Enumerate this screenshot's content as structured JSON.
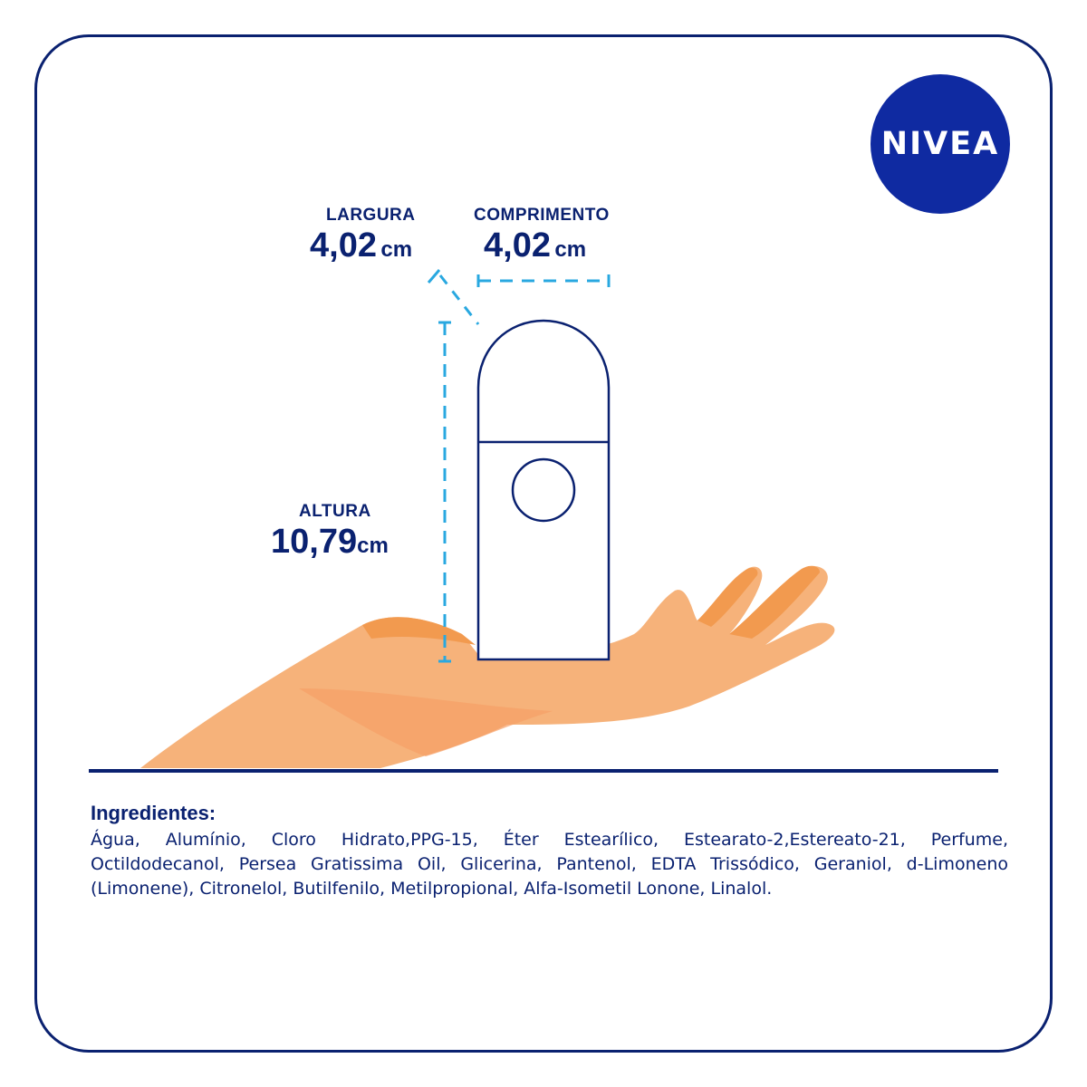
{
  "brand": {
    "name": "NIVEA",
    "color": "#0f2aa1",
    "icon": "nivea-logo-icon"
  },
  "dimensions": {
    "largura": {
      "label": "LARGURA",
      "value": "4,02",
      "unit": "cm"
    },
    "comprimento": {
      "label": "COMPRIMENTO",
      "value": "4,02",
      "unit": "cm"
    },
    "altura": {
      "label": "ALTURA",
      "value": "10,79",
      "unit": "cm"
    }
  },
  "illustration": {
    "product_icon": "roll-on-deodorant-icon",
    "hand_icon": "open-hand-icon",
    "measure_color": "#29a8e0",
    "skin_color": "#f6b27a"
  },
  "ingredients": {
    "title": "Ingredientes:",
    "text": "Água, Alumínio, Cloro Hidrato,PPG-15, Éter Estearílico, Estearato-2,Estereato-21, Perfume, Octildodecanol, Persea Gratissima Oil, Glicerina, Pantenol, EDTA Trissódico, Geraniol, d-Limoneno (Limonene), Citronelol, Butilfenilo, Metilpropional, Alfa-Isometil Lonone, Linalol."
  }
}
